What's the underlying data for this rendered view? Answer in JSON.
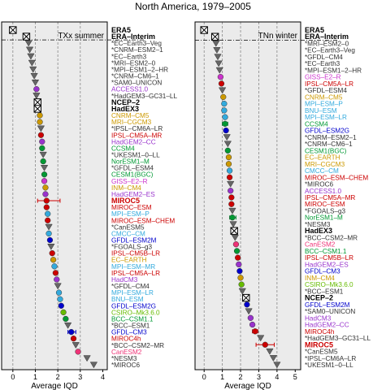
{
  "figure": {
    "title": "North America, 1979–2005",
    "xlabel": "Average IQD"
  },
  "chart_data": [
    {
      "type": "scatter",
      "panel_title": "TXx summer",
      "xlabel": "Average IQD",
      "xlim": [
        -0.5,
        4.2
      ],
      "xticks": [
        0,
        1,
        2,
        3,
        4
      ],
      "vlines": [
        0,
        1,
        2,
        3
      ],
      "reference_labels": [
        "ERA5",
        "ERA–Interim"
      ],
      "points": [
        {
          "label": "ERA5",
          "value": 0.0,
          "marker": "xbox",
          "color": "#000000",
          "bold": true
        },
        {
          "label": "ERA–Interim",
          "value": 0.6,
          "marker": "xbox",
          "color": "#000000",
          "bold": true
        },
        {
          "label": "*EC–Earth3–Veg",
          "value": 0.7,
          "marker": "tri",
          "color": "#333333"
        },
        {
          "label": "*CNRM–ESM2–1",
          "value": 0.75,
          "marker": "tri",
          "color": "#333333"
        },
        {
          "label": "*EC–Earth3",
          "value": 0.8,
          "marker": "tri",
          "color": "#333333"
        },
        {
          "label": "*MRI–ESM2–0",
          "value": 0.85,
          "marker": "tri",
          "color": "#333333"
        },
        {
          "label": "*MPI–ESM1–2–HR",
          "value": 0.9,
          "marker": "tri",
          "color": "#333333"
        },
        {
          "label": "*CNRM–CM6–1",
          "value": 0.95,
          "marker": "tri",
          "color": "#333333"
        },
        {
          "label": "*SAM0–UNICON",
          "value": 1.0,
          "marker": "tri",
          "color": "#333333"
        },
        {
          "label": "ACCESS1.0",
          "value": 1.05,
          "marker": "circle",
          "color": "#9933cc"
        },
        {
          "label": "*HadGEM3–GC31–LL",
          "value": 1.05,
          "marker": "tri",
          "color": "#333333"
        },
        {
          "label": "NCEP–2",
          "value": 1.1,
          "marker": "xbox",
          "color": "#000000",
          "bold": true
        },
        {
          "label": "HadEX3",
          "value": 1.1,
          "marker": "xbox",
          "color": "#000000",
          "bold": true
        },
        {
          "label": "CNRM–CM5",
          "value": 1.2,
          "marker": "circle",
          "color": "#cc9900"
        },
        {
          "label": "MRI–CGCM3",
          "value": 1.2,
          "marker": "circle",
          "color": "#cc9900"
        },
        {
          "label": "*IPSL–CM6A–LR",
          "value": 1.25,
          "marker": "tri",
          "color": "#333333"
        },
        {
          "label": "IPSL–CM5A–MR",
          "value": 1.25,
          "marker": "circle",
          "color": "#cc0000"
        },
        {
          "label": "HadGEM2–CC",
          "value": 1.3,
          "marker": "circle",
          "color": "#9933cc"
        },
        {
          "label": "CCSM4",
          "value": 1.3,
          "marker": "circle",
          "color": "#009933"
        },
        {
          "label": "*UKESM1–0–LL",
          "value": 1.35,
          "marker": "tri",
          "color": "#333333"
        },
        {
          "label": "NorESM1–M",
          "value": 1.35,
          "marker": "circle",
          "color": "#009933"
        },
        {
          "label": "*GFDL–ESM4",
          "value": 1.4,
          "marker": "tri",
          "color": "#333333"
        },
        {
          "label": "CESM1(BGC)",
          "value": 1.4,
          "marker": "circle",
          "color": "#009933"
        },
        {
          "label": "GISS–E2–R",
          "value": 1.4,
          "marker": "circle",
          "color": "#cc33cc"
        },
        {
          "label": "INM–CM4",
          "value": 1.45,
          "marker": "circle",
          "color": "#cc9900"
        },
        {
          "label": "HadGEM2–ES",
          "value": 1.45,
          "marker": "circle",
          "color": "#9933cc"
        },
        {
          "label": "MIROC5",
          "value": 1.5,
          "marker": "circle",
          "color": "#cc0000",
          "bold": true,
          "err": [
            1.1,
            2.1
          ]
        },
        {
          "label": "MIROC–ESM",
          "value": 1.5,
          "marker": "circle",
          "color": "#cc0000"
        },
        {
          "label": "MPI–ESM–P",
          "value": 1.55,
          "marker": "circle",
          "color": "#33aadd"
        },
        {
          "label": "MIROC–ESM–CHEM",
          "value": 1.55,
          "marker": "circle",
          "color": "#cc0000"
        },
        {
          "label": "*CanESM5",
          "value": 1.6,
          "marker": "tri",
          "color": "#333333"
        },
        {
          "label": "CMCC–CM",
          "value": 1.6,
          "marker": "circle",
          "color": "#33aadd"
        },
        {
          "label": "GFDL–ESM2M",
          "value": 1.65,
          "marker": "circle",
          "color": "#0000cc"
        },
        {
          "label": "*FGOALS–g3",
          "value": 1.7,
          "marker": "tri",
          "color": "#333333"
        },
        {
          "label": "IPSL–CM5B–LR",
          "value": 1.75,
          "marker": "circle",
          "color": "#cc0000"
        },
        {
          "label": "EC–EARTH",
          "value": 1.8,
          "marker": "circle",
          "color": "#cc9900"
        },
        {
          "label": "MPI–ESM–MR",
          "value": 1.85,
          "marker": "circle",
          "color": "#33aadd"
        },
        {
          "label": "IPSL–CM5A–LR",
          "value": 1.9,
          "marker": "circle",
          "color": "#cc0000"
        },
        {
          "label": "HadCM3",
          "value": 1.95,
          "marker": "circle",
          "color": "#9933cc"
        },
        {
          "label": "*GFDL–CM4",
          "value": 2.0,
          "marker": "tri",
          "color": "#333333"
        },
        {
          "label": "MPI–ESM–LR",
          "value": 2.05,
          "marker": "circle",
          "color": "#33aadd"
        },
        {
          "label": "BNU–ESM",
          "value": 2.1,
          "marker": "circle",
          "color": "#33aadd"
        },
        {
          "label": "GFDL–ESM2G",
          "value": 2.15,
          "marker": "circle",
          "color": "#0000cc"
        },
        {
          "label": "CSIRO–Mk3.6.0",
          "value": 2.25,
          "marker": "circle",
          "color": "#66bb00"
        },
        {
          "label": "BCC–CSM1.1",
          "value": 2.35,
          "marker": "circle",
          "color": "#009933"
        },
        {
          "label": "*BCC–ESM1",
          "value": 2.45,
          "marker": "tri",
          "color": "#333333"
        },
        {
          "label": "GFDL–CM3",
          "value": 2.6,
          "marker": "circle",
          "color": "#0000cc",
          "err": [
            2.45,
            2.8
          ]
        },
        {
          "label": "MIROC4h",
          "value": 2.7,
          "marker": "circle",
          "color": "#cc0000"
        },
        {
          "label": "*BCC–CSM2–MR",
          "value": 2.8,
          "marker": "tri",
          "color": "#333333"
        },
        {
          "label": "CanESM2",
          "value": 2.9,
          "marker": "circle",
          "color": "#ee3377"
        },
        {
          "label": "*NESM3",
          "value": 3.3,
          "marker": "tri",
          "color": "#333333"
        },
        {
          "label": "*MIROC6",
          "value": 3.6,
          "marker": "tri",
          "color": "#333333"
        }
      ]
    },
    {
      "type": "scatter",
      "panel_title": "TNn winter",
      "xlabel": "Average IQD",
      "xlim": [
        -0.5,
        5.3
      ],
      "xticks": [
        0,
        1,
        2,
        3,
        4,
        5
      ],
      "vlines": [
        0,
        1,
        2,
        3,
        4
      ],
      "reference_labels": [
        "ERA5",
        "ERA–Interim"
      ],
      "points": [
        {
          "label": "ERA5",
          "value": 0.0,
          "marker": "xbox",
          "color": "#000000",
          "bold": true
        },
        {
          "label": "ERA–Interim",
          "value": 0.6,
          "marker": "xbox",
          "color": "#000000",
          "bold": true
        },
        {
          "label": "*MRI–ESM2–0",
          "value": 0.65,
          "marker": "tri",
          "color": "#333333"
        },
        {
          "label": "*EC–Earth3–Veg",
          "value": 0.7,
          "marker": "tri",
          "color": "#333333"
        },
        {
          "label": "*GFDL–CM4",
          "value": 0.75,
          "marker": "tri",
          "color": "#333333"
        },
        {
          "label": "*EC–Earth3",
          "value": 0.8,
          "marker": "tri",
          "color": "#333333"
        },
        {
          "label": "*MPI–ESM1–2–HR",
          "value": 0.85,
          "marker": "tri",
          "color": "#333333"
        },
        {
          "label": "GISS–E2–R",
          "value": 0.9,
          "marker": "circle",
          "color": "#cc33cc"
        },
        {
          "label": "IPSL–CM5A–LR",
          "value": 0.95,
          "marker": "circle",
          "color": "#cc0000"
        },
        {
          "label": "*GFDL–ESM4",
          "value": 1.0,
          "marker": "tri",
          "color": "#333333"
        },
        {
          "label": "CNRM–CM5",
          "value": 1.05,
          "marker": "circle",
          "color": "#cc9900"
        },
        {
          "label": "MPI–ESM–P",
          "value": 1.1,
          "marker": "circle",
          "color": "#33aadd"
        },
        {
          "label": "BNU–ESM",
          "value": 1.1,
          "marker": "circle",
          "color": "#33aadd"
        },
        {
          "label": "MPI–ESM–LR",
          "value": 1.15,
          "marker": "circle",
          "color": "#33aadd"
        },
        {
          "label": "CCSM4",
          "value": 1.15,
          "marker": "circle",
          "color": "#009933",
          "err": [
            1.0,
            1.3
          ]
        },
        {
          "label": "GFDL–ESM2G",
          "value": 1.2,
          "marker": "circle",
          "color": "#0000cc"
        },
        {
          "label": "*CNRM–ESM2–1",
          "value": 1.25,
          "marker": "tri",
          "color": "#333333"
        },
        {
          "label": "*CNRM–CM6–1",
          "value": 1.3,
          "marker": "tri",
          "color": "#333333"
        },
        {
          "label": "CESM1(BGC)",
          "value": 1.3,
          "marker": "circle",
          "color": "#009933"
        },
        {
          "label": "EC–EARTH",
          "value": 1.35,
          "marker": "circle",
          "color": "#cc9900"
        },
        {
          "label": "MRI–CGCM3",
          "value": 1.35,
          "marker": "circle",
          "color": "#cc9900"
        },
        {
          "label": "CMCC–CM",
          "value": 1.4,
          "marker": "circle",
          "color": "#33aadd"
        },
        {
          "label": "MIROC–ESM–CHEM",
          "value": 1.4,
          "marker": "circle",
          "color": "#cc0000"
        },
        {
          "label": "*MIROC6",
          "value": 1.45,
          "marker": "tri",
          "color": "#333333"
        },
        {
          "label": "ACCESS1.0",
          "value": 1.45,
          "marker": "circle",
          "color": "#9933cc"
        },
        {
          "label": "IPSL–CM5A–MR",
          "value": 1.5,
          "marker": "circle",
          "color": "#cc0000"
        },
        {
          "label": "MIROC–ESM",
          "value": 1.5,
          "marker": "circle",
          "color": "#cc0000"
        },
        {
          "label": "*FGOALS–g3",
          "value": 1.55,
          "marker": "tri",
          "color": "#333333"
        },
        {
          "label": "NorESM1–M",
          "value": 1.55,
          "marker": "circle",
          "color": "#009933",
          "err": [
            1.4,
            1.75
          ]
        },
        {
          "label": "*NESM3",
          "value": 1.6,
          "marker": "tri",
          "color": "#333333"
        },
        {
          "label": "HadEX3",
          "value": 1.65,
          "marker": "xbox",
          "color": "#000000",
          "bold": true
        },
        {
          "label": "*BCC–CSM2–MR",
          "value": 1.7,
          "marker": "tri",
          "color": "#333333"
        },
        {
          "label": "CanESM2",
          "value": 1.75,
          "marker": "circle",
          "color": "#ee3377"
        },
        {
          "label": "BCC–CSM1.1",
          "value": 1.8,
          "marker": "circle",
          "color": "#009933"
        },
        {
          "label": "IPSL–CM5B–LR",
          "value": 1.85,
          "marker": "circle",
          "color": "#cc0000"
        },
        {
          "label": "HadGEM2–ES",
          "value": 1.9,
          "marker": "circle",
          "color": "#9933cc"
        },
        {
          "label": "GFDL–CM3",
          "value": 1.95,
          "marker": "circle",
          "color": "#0000cc"
        },
        {
          "label": "INM–CM4",
          "value": 2.0,
          "marker": "circle",
          "color": "#cc9900"
        },
        {
          "label": "CSIRO–Mk3.6.0",
          "value": 2.05,
          "marker": "circle",
          "color": "#66bb00"
        },
        {
          "label": "*BCC–ESM1",
          "value": 2.1,
          "marker": "tri",
          "color": "#333333"
        },
        {
          "label": "NCEP–2",
          "value": 2.3,
          "marker": "xbox",
          "color": "#000000",
          "bold": true
        },
        {
          "label": "GFDL–ESM2M",
          "value": 2.35,
          "marker": "circle",
          "color": "#0000cc"
        },
        {
          "label": "*SAM0–UNICON",
          "value": 2.45,
          "marker": "tri",
          "color": "#333333"
        },
        {
          "label": "HadCM3",
          "value": 2.55,
          "marker": "circle",
          "color": "#9933cc"
        },
        {
          "label": "HadGEM2–CC",
          "value": 2.65,
          "marker": "circle",
          "color": "#9933cc"
        },
        {
          "label": "MIROC4h",
          "value": 2.8,
          "marker": "circle",
          "color": "#cc0000",
          "err": [
            2.65,
            2.95
          ]
        },
        {
          "label": "*HadGEM3–GC31–LL",
          "value": 3.1,
          "marker": "tri",
          "color": "#333333"
        },
        {
          "label": "MIROC5",
          "value": 3.35,
          "marker": "circle",
          "color": "#cc0000",
          "bold": true,
          "err": [
            2.85,
            3.85
          ]
        },
        {
          "label": "*CanESM5",
          "value": 3.6,
          "marker": "tri",
          "color": "#333333"
        },
        {
          "label": "*IPSL–CM6A–LR",
          "value": 3.8,
          "marker": "tri",
          "color": "#333333"
        },
        {
          "label": "*UKESM1–0–LL",
          "value": 4.0,
          "marker": "tri",
          "color": "#333333"
        }
      ]
    }
  ]
}
